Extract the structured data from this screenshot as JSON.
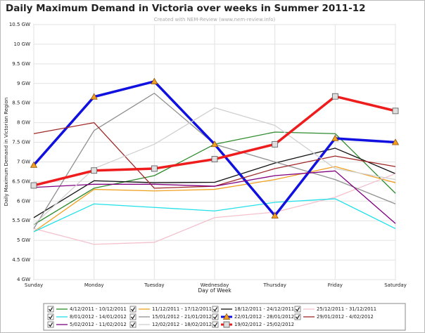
{
  "chart_data": {
    "type": "line",
    "title": "Daily Maximum Demand in Victoria over weeks in Summer 2011-12",
    "subtitle": "Created with NEM-Review (www.nem-review.info)",
    "x_label": "Day of Week",
    "y_label": "Daily Maximum Demand in Victorian Region",
    "categories": [
      "Sunday",
      "Monday",
      "Tuesday",
      "Wednesday",
      "Thursday",
      "Friday",
      "Saturday"
    ],
    "ylim": [
      4,
      10.5
    ],
    "yticks": [
      {
        "value": 4,
        "label": "4 GW"
      },
      {
        "value": 4.5,
        "label": "4.5 GW"
      },
      {
        "value": 5,
        "label": "5 GW"
      },
      {
        "value": 5.5,
        "label": "5.5 GW"
      },
      {
        "value": 6,
        "label": "6 GW"
      },
      {
        "value": 6.5,
        "label": "6.5 GW"
      },
      {
        "value": 7,
        "label": "7 GW"
      },
      {
        "value": 7.5,
        "label": "7.5 GW"
      },
      {
        "value": 8,
        "label": "8 GW"
      },
      {
        "value": 8.5,
        "label": "8.5 GW"
      },
      {
        "value": 9,
        "label": "9 GW"
      },
      {
        "value": 9.5,
        "label": "9.5 GW"
      },
      {
        "value": 10,
        "label": "10 GW"
      },
      {
        "value": 10.5,
        "label": "10.5 GW"
      }
    ],
    "grid": true,
    "series": [
      {
        "name": "4/12/2011 - 10/12/2011",
        "color": "#2e8b2e",
        "width": 1.3,
        "values": [
          5.4,
          6.33,
          6.65,
          7.45,
          7.76,
          7.72,
          6.2
        ]
      },
      {
        "name": "11/12/2011 - 17/12/2011",
        "color": "#f0a020",
        "width": 1.3,
        "values": [
          5.22,
          6.3,
          6.26,
          6.3,
          6.55,
          6.88,
          6.47
        ]
      },
      {
        "name": "18/12/2011 - 24/12/2011",
        "color": "#111111",
        "width": 1.3,
        "values": [
          5.58,
          6.52,
          6.47,
          6.48,
          6.97,
          7.35,
          6.7
        ]
      },
      {
        "name": "25/12/2011 - 31/12/2011",
        "color": "#f4c0cc",
        "width": 1.3,
        "values": [
          5.3,
          4.9,
          4.95,
          5.58,
          5.72,
          6.1,
          6.7
        ]
      },
      {
        "name": "8/01/2012 - 14/01/2012",
        "color": "#22e0e8",
        "width": 1.3,
        "values": [
          5.22,
          5.93,
          5.84,
          5.75,
          5.97,
          6.06,
          5.3
        ]
      },
      {
        "name": "15/01/2012 - 21/01/2012",
        "color": "#909090",
        "width": 1.3,
        "values": [
          5.3,
          7.8,
          8.75,
          7.45,
          7.0,
          6.55,
          5.93
        ]
      },
      {
        "name": "22/01/2012 - 28/01/2012",
        "color": "#1010e0",
        "width": 3.5,
        "marker": "triangle",
        "values": [
          6.92,
          8.66,
          9.05,
          7.45,
          5.63,
          7.6,
          7.5
        ]
      },
      {
        "name": "29/01/2012 - 4/02/2012",
        "color": "#a02828",
        "width": 1.3,
        "values": [
          7.72,
          8.0,
          6.33,
          6.38,
          6.83,
          7.15,
          6.88
        ]
      },
      {
        "name": "5/02/2012 - 11/02/2012",
        "color": "#800080",
        "width": 1.3,
        "values": [
          6.35,
          6.43,
          6.43,
          6.38,
          6.65,
          6.77,
          5.43
        ]
      },
      {
        "name": "12/02/2012 - 18/02/2012",
        "color": "#d0d0d0",
        "width": 1.3,
        "values": [
          5.4,
          6.83,
          7.45,
          8.38,
          7.93,
          6.83,
          6.55
        ]
      },
      {
        "name": "19/02/2012 - 25/02/2012",
        "color": "#ee1c1c",
        "width": 3.5,
        "marker": "square",
        "values": [
          6.4,
          6.78,
          6.83,
          7.07,
          7.45,
          8.67,
          8.3
        ]
      }
    ]
  }
}
